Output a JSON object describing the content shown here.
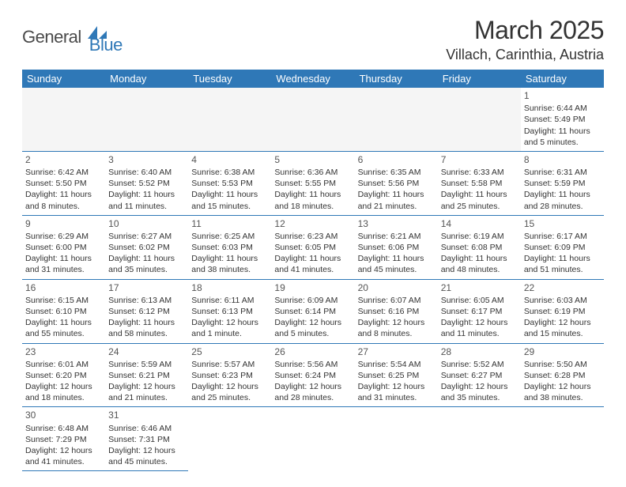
{
  "logo": {
    "general": "General",
    "blue": "Blue"
  },
  "title": "March 2025",
  "location": "Villach, Carinthia, Austria",
  "weekdays": [
    "Sunday",
    "Monday",
    "Tuesday",
    "Wednesday",
    "Thursday",
    "Friday",
    "Saturday"
  ],
  "colors": {
    "header_bg": "#2f78b7",
    "header_text": "#ffffff",
    "border": "#2f78b7",
    "logo_gray": "#4a4a4a",
    "logo_blue": "#2f78b7",
    "empty_bg": "#f5f5f5"
  },
  "blank_before": 6,
  "days": [
    {
      "n": "1",
      "sunrise": "6:44 AM",
      "sunset": "5:49 PM",
      "daylight": "11 hours and 5 minutes."
    },
    {
      "n": "2",
      "sunrise": "6:42 AM",
      "sunset": "5:50 PM",
      "daylight": "11 hours and 8 minutes."
    },
    {
      "n": "3",
      "sunrise": "6:40 AM",
      "sunset": "5:52 PM",
      "daylight": "11 hours and 11 minutes."
    },
    {
      "n": "4",
      "sunrise": "6:38 AM",
      "sunset": "5:53 PM",
      "daylight": "11 hours and 15 minutes."
    },
    {
      "n": "5",
      "sunrise": "6:36 AM",
      "sunset": "5:55 PM",
      "daylight": "11 hours and 18 minutes."
    },
    {
      "n": "6",
      "sunrise": "6:35 AM",
      "sunset": "5:56 PM",
      "daylight": "11 hours and 21 minutes."
    },
    {
      "n": "7",
      "sunrise": "6:33 AM",
      "sunset": "5:58 PM",
      "daylight": "11 hours and 25 minutes."
    },
    {
      "n": "8",
      "sunrise": "6:31 AM",
      "sunset": "5:59 PM",
      "daylight": "11 hours and 28 minutes."
    },
    {
      "n": "9",
      "sunrise": "6:29 AM",
      "sunset": "6:00 PM",
      "daylight": "11 hours and 31 minutes."
    },
    {
      "n": "10",
      "sunrise": "6:27 AM",
      "sunset": "6:02 PM",
      "daylight": "11 hours and 35 minutes."
    },
    {
      "n": "11",
      "sunrise": "6:25 AM",
      "sunset": "6:03 PM",
      "daylight": "11 hours and 38 minutes."
    },
    {
      "n": "12",
      "sunrise": "6:23 AM",
      "sunset": "6:05 PM",
      "daylight": "11 hours and 41 minutes."
    },
    {
      "n": "13",
      "sunrise": "6:21 AM",
      "sunset": "6:06 PM",
      "daylight": "11 hours and 45 minutes."
    },
    {
      "n": "14",
      "sunrise": "6:19 AM",
      "sunset": "6:08 PM",
      "daylight": "11 hours and 48 minutes."
    },
    {
      "n": "15",
      "sunrise": "6:17 AM",
      "sunset": "6:09 PM",
      "daylight": "11 hours and 51 minutes."
    },
    {
      "n": "16",
      "sunrise": "6:15 AM",
      "sunset": "6:10 PM",
      "daylight": "11 hours and 55 minutes."
    },
    {
      "n": "17",
      "sunrise": "6:13 AM",
      "sunset": "6:12 PM",
      "daylight": "11 hours and 58 minutes."
    },
    {
      "n": "18",
      "sunrise": "6:11 AM",
      "sunset": "6:13 PM",
      "daylight": "12 hours and 1 minute."
    },
    {
      "n": "19",
      "sunrise": "6:09 AM",
      "sunset": "6:14 PM",
      "daylight": "12 hours and 5 minutes."
    },
    {
      "n": "20",
      "sunrise": "6:07 AM",
      "sunset": "6:16 PM",
      "daylight": "12 hours and 8 minutes."
    },
    {
      "n": "21",
      "sunrise": "6:05 AM",
      "sunset": "6:17 PM",
      "daylight": "12 hours and 11 minutes."
    },
    {
      "n": "22",
      "sunrise": "6:03 AM",
      "sunset": "6:19 PM",
      "daylight": "12 hours and 15 minutes."
    },
    {
      "n": "23",
      "sunrise": "6:01 AM",
      "sunset": "6:20 PM",
      "daylight": "12 hours and 18 minutes."
    },
    {
      "n": "24",
      "sunrise": "5:59 AM",
      "sunset": "6:21 PM",
      "daylight": "12 hours and 21 minutes."
    },
    {
      "n": "25",
      "sunrise": "5:57 AM",
      "sunset": "6:23 PM",
      "daylight": "12 hours and 25 minutes."
    },
    {
      "n": "26",
      "sunrise": "5:56 AM",
      "sunset": "6:24 PM",
      "daylight": "12 hours and 28 minutes."
    },
    {
      "n": "27",
      "sunrise": "5:54 AM",
      "sunset": "6:25 PM",
      "daylight": "12 hours and 31 minutes."
    },
    {
      "n": "28",
      "sunrise": "5:52 AM",
      "sunset": "6:27 PM",
      "daylight": "12 hours and 35 minutes."
    },
    {
      "n": "29",
      "sunrise": "5:50 AM",
      "sunset": "6:28 PM",
      "daylight": "12 hours and 38 minutes."
    },
    {
      "n": "30",
      "sunrise": "6:48 AM",
      "sunset": "7:29 PM",
      "daylight": "12 hours and 41 minutes."
    },
    {
      "n": "31",
      "sunrise": "6:46 AM",
      "sunset": "7:31 PM",
      "daylight": "12 hours and 45 minutes."
    }
  ],
  "labels": {
    "sunrise": "Sunrise: ",
    "sunset": "Sunset: ",
    "daylight": "Daylight: "
  }
}
